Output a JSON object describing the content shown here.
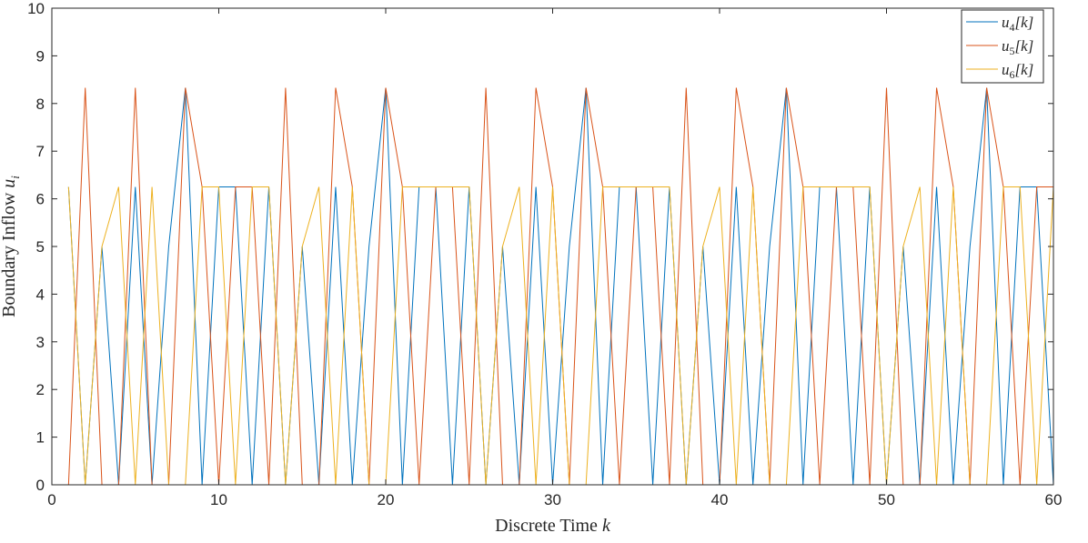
{
  "chart_data": {
    "type": "line",
    "title": "",
    "xlabel": "Discrete Time",
    "xlabel_var": "k",
    "ylabel": "Boundary Inflow",
    "ylabel_var": "u",
    "ylabel_sub": "i",
    "xlim": [
      0,
      60
    ],
    "ylim": [
      0,
      10
    ],
    "xticks": [
      0,
      10,
      20,
      30,
      40,
      50,
      60
    ],
    "yticks": [
      0,
      1,
      2,
      3,
      4,
      5,
      6,
      7,
      8,
      9,
      10
    ],
    "grid": false,
    "legend_position": "top-right",
    "x": [
      1,
      2,
      3,
      4,
      5,
      6,
      7,
      8,
      9,
      10,
      11,
      12,
      13,
      14,
      15,
      16,
      17,
      18,
      19,
      20,
      21,
      22,
      23,
      24,
      25,
      26,
      27,
      28,
      29,
      30,
      31,
      32,
      33,
      34,
      35,
      36,
      37,
      38,
      39,
      40,
      41,
      42,
      43,
      44,
      45,
      46,
      47,
      48,
      49,
      50,
      51,
      52,
      53,
      54,
      55,
      56,
      57,
      58,
      59,
      60
    ],
    "series": [
      {
        "name": "u_4[k]",
        "label_var": "u",
        "label_sub": "4",
        "label_arg": "k",
        "color": "#0072BD",
        "values": [
          6.25,
          0,
          5,
          0,
          6.25,
          0,
          5,
          8.33,
          0,
          6.25,
          6.25,
          0,
          6.25,
          0,
          5,
          0,
          6.25,
          0,
          5,
          8.33,
          0,
          6.25,
          6.25,
          0,
          6.25,
          0,
          5,
          0,
          6.25,
          0,
          5,
          8.33,
          0,
          6.25,
          6.25,
          0,
          6.25,
          0,
          5,
          0,
          6.25,
          0,
          5,
          8.33,
          0,
          6.25,
          6.25,
          0,
          6.25,
          0,
          5,
          0,
          6.25,
          0,
          5,
          8.33,
          0,
          6.25,
          6.25,
          0
        ]
      },
      {
        "name": "u_5[k]",
        "label_var": "u",
        "label_sub": "5",
        "label_arg": "k",
        "color": "#D95319",
        "values": [
          0,
          8.33,
          0,
          0,
          8.33,
          0,
          0,
          8.33,
          6.25,
          0,
          6.25,
          6.25,
          0,
          8.33,
          0,
          0,
          8.33,
          6.25,
          0,
          8.33,
          6.25,
          0,
          6.25,
          6.25,
          0,
          8.33,
          0,
          0,
          8.33,
          6.25,
          0,
          8.33,
          6.25,
          0,
          6.25,
          6.25,
          0,
          8.33,
          0,
          0,
          8.33,
          6.25,
          0,
          8.33,
          6.25,
          0,
          6.25,
          6.25,
          0,
          8.33,
          0,
          0,
          8.33,
          6.25,
          0,
          8.33,
          6.25,
          0,
          6.25,
          6.25
        ]
      },
      {
        "name": "u_6[k]",
        "label_var": "u",
        "label_sub": "6",
        "label_arg": "k",
        "color": "#EDB120",
        "values": [
          6.25,
          0,
          5,
          6.25,
          0,
          6.25,
          0,
          0,
          6.25,
          6.25,
          0,
          6.25,
          6.25,
          0,
          5,
          6.25,
          0,
          6.25,
          0,
          0,
          6.25,
          6.25,
          6.25,
          6.25,
          6.25,
          0,
          5,
          6.25,
          0,
          6.25,
          0,
          0,
          6.25,
          6.25,
          6.25,
          6.25,
          6.25,
          0,
          5,
          6.25,
          0,
          6.25,
          0,
          0,
          6.25,
          6.25,
          6.25,
          6.25,
          6.25,
          0,
          5,
          6.25,
          0,
          6.25,
          0,
          0,
          6.25,
          6.25,
          0,
          6.25
        ]
      }
    ]
  }
}
